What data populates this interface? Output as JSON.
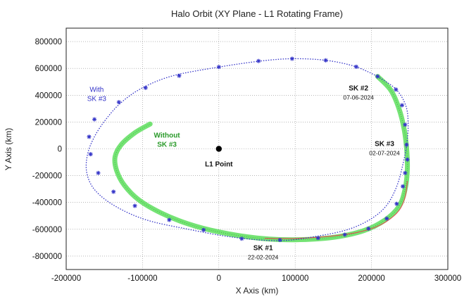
{
  "chart_data": {
    "type": "line",
    "title": "Halo Orbit (XY Plane - L1 Rotating Frame)",
    "xlabel": "X Axis (km)",
    "ylabel": "Y Axis (km)",
    "xlim": [
      -200000,
      300000
    ],
    "ylim": [
      -900000,
      900000
    ],
    "xticks": [
      -200000,
      -100000,
      0,
      100000,
      200000,
      300000
    ],
    "yticks": [
      -800000,
      -600000,
      -400000,
      -200000,
      0,
      200000,
      400000,
      600000,
      800000
    ],
    "xtick_labels": [
      "-200000",
      "-100000",
      "0",
      "100000",
      "200000",
      "300000"
    ],
    "ytick_labels": [
      "-800000",
      "-600000",
      "-400000",
      "-200000",
      "0",
      "200000",
      "400000",
      "600000",
      "800000"
    ],
    "grid": true,
    "colors": {
      "with_sk3": "#3434c8",
      "without_sk3": "#66e066",
      "reference": "#e05050",
      "l1_point": "#000000"
    },
    "series": [
      {
        "style": "blue dotted line with star markers",
        "x": [
          208000,
          232000,
          245000,
          248000,
          246000,
          241000,
          233000,
          220000,
          200000,
          170000,
          130000,
          80000,
          20000,
          -40000,
          -95000,
          -135000,
          -162000,
          -173000,
          -172000,
          -163000,
          -148000,
          -128000,
          -100000,
          -60000,
          0,
          55000,
          97000,
          140000,
          178000,
          208000
        ],
        "y": [
          540000,
          445000,
          320000,
          180000,
          30000,
          -120000,
          -280000,
          -420000,
          -520000,
          -600000,
          -650000,
          -685000,
          -660000,
          -600000,
          -530000,
          -430000,
          -310000,
          -180000,
          -40000,
          90000,
          220000,
          345000,
          455000,
          545000,
          610000,
          655000,
          672000,
          660000,
          615000,
          540000
        ],
        "markers_x": [
          208000,
          232000,
          240000,
          244000,
          246000,
          247000,
          244000,
          241000,
          233000,
          220000,
          196000,
          165000,
          130000,
          80000,
          30000,
          -20000,
          -65000,
          -110000,
          -138000,
          -158000,
          -168000,
          -170000,
          -163000,
          -131000,
          -96000,
          -52000,
          0,
          52000,
          96000,
          140000,
          180000
        ],
        "markers_y": [
          540000,
          442000,
          325000,
          180000,
          30000,
          -80000,
          -180000,
          -280000,
          -410000,
          -520000,
          -595000,
          -640000,
          -665000,
          -680000,
          -670000,
          -605000,
          -530000,
          -425000,
          -320000,
          -180000,
          -40000,
          90000,
          220000,
          348000,
          455000,
          545000,
          610000,
          655000,
          672000,
          660000,
          612000
        ]
      },
      {
        "style": "thick green band",
        "x": [
          -90000,
          -110000,
          -128000,
          -136000,
          -134000,
          -124000,
          -105000,
          -75000,
          -40000,
          0,
          50000,
          100000,
          150000,
          190000,
          218000,
          236000,
          244000,
          247000,
          246000,
          243000,
          236000,
          225000,
          208000
        ],
        "y": [
          185000,
          120000,
          30000,
          -60000,
          -160000,
          -270000,
          -380000,
          -480000,
          -560000,
          -620000,
          -665000,
          -678000,
          -660000,
          -610000,
          -530000,
          -430000,
          -300000,
          -150000,
          0,
          140000,
          300000,
          440000,
          540000
        ]
      },
      {
        "style": "thin red line",
        "x": [
          60000,
          100000,
          140000,
          175000,
          200000,
          220000,
          236000,
          244000,
          247000
        ],
        "y": [
          -668000,
          -668000,
          -655000,
          -630000,
          -595000,
          -540000,
          -460000,
          -360000,
          -240000
        ]
      }
    ],
    "points": [
      {
        "label": "L1 Point",
        "x": 0,
        "y": 0
      }
    ],
    "annotations": [
      {
        "id": "with",
        "lines": [
          "With",
          "SK #3"
        ],
        "x": -160000,
        "y": 425000,
        "style": "blue"
      },
      {
        "id": "without",
        "lines": [
          "Without",
          "SK #3"
        ],
        "x": -68000,
        "y": 85000,
        "style": "green"
      },
      {
        "id": "sk2",
        "lines": [
          "SK #2",
          "07-06-2024"
        ],
        "x": 183000,
        "y": 435000,
        "style": "black"
      },
      {
        "id": "sk3",
        "lines": [
          "SK #3",
          "02-07-2024"
        ],
        "x": 217000,
        "y": 22000,
        "style": "black"
      },
      {
        "id": "sk1",
        "lines": [
          "SK #1",
          "22-02-2024"
        ],
        "x": 58000,
        "y": -755000,
        "style": "black"
      }
    ]
  }
}
